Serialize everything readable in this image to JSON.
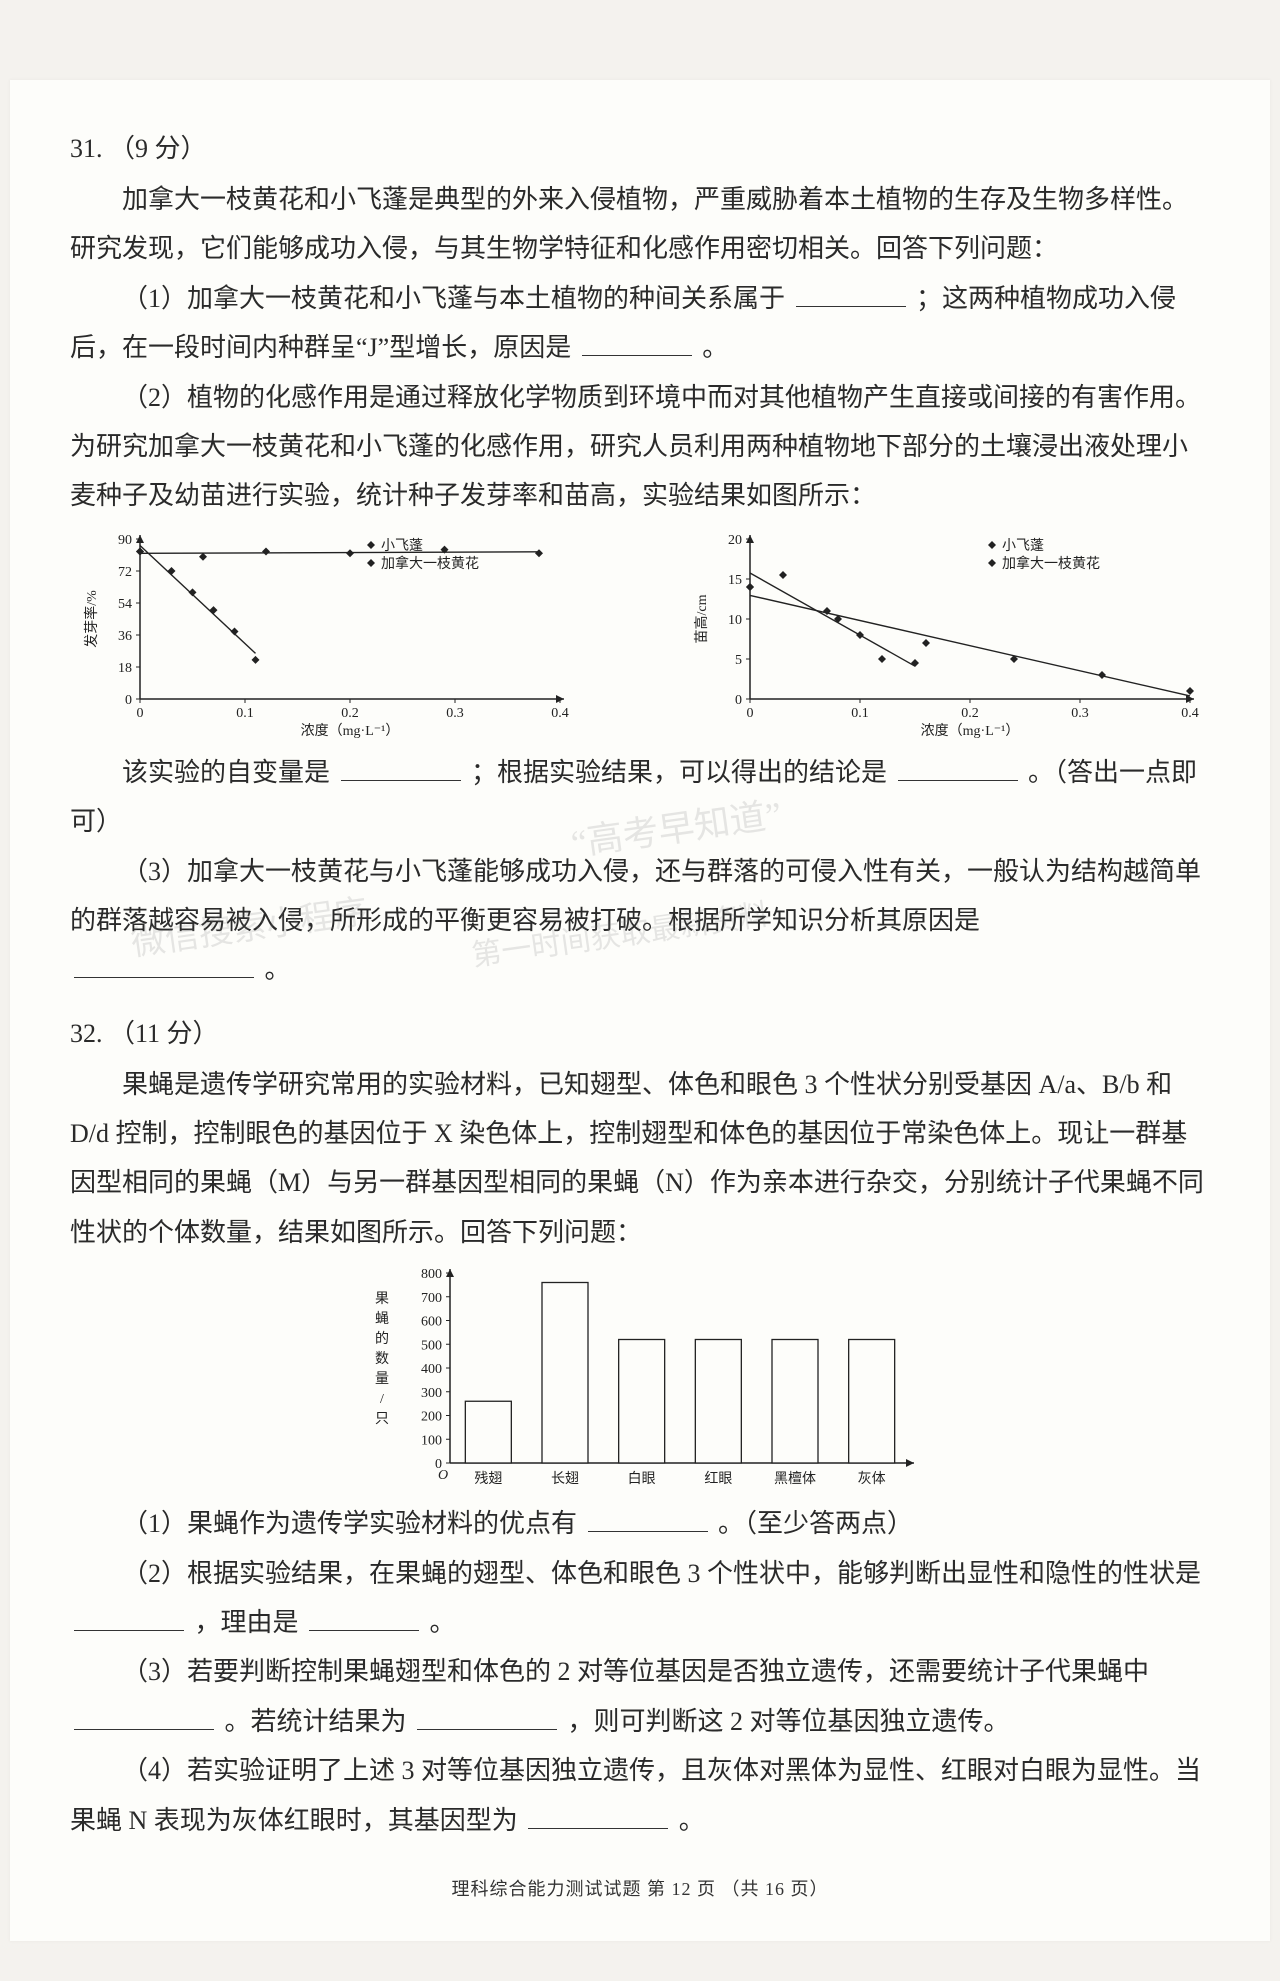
{
  "q31": {
    "header": "31. （9 分）",
    "intro": "加拿大一枝黄花和小飞蓬是典型的外来入侵植物，严重威胁着本土植物的生存及生物多样性。研究发现，它们能够成功入侵，与其生物学特征和化感作用密切相关。回答下列问题：",
    "p1a": "（1）加拿大一枝黄花和小飞蓬与本土植物的种间关系属于",
    "p1b": "；这两种植物成功入侵后，在一段时间内种群呈“J”型增长，原因是",
    "p1c": "。",
    "p2": "（2）植物的化感作用是通过释放化学物质到环境中而对其他植物产生直接或间接的有害作用。为研究加拿大一枝黄花和小飞蓬的化感作用，研究人员利用两种植物地下部分的土壤浸出液处理小麦种子及幼苗进行实验，统计种子发芽率和苗高，实验结果如图所示：",
    "p3a": "该实验的自变量是",
    "p3b": "；根据实验结果，可以得出的结论是",
    "p3c": "。（答出一点即可）",
    "p4a": "（3）加拿大一枝黄花与小飞蓬能够成功入侵，还与群落的可侵入性有关，一般认为结构越简单的群落越容易被入侵，所形成的平衡更容易被打破。根据所学知识分析其原因是",
    "p4b": "。",
    "chart1": {
      "type": "scatter-line",
      "legend": [
        "小飞蓬",
        "加拿大一枝黄花"
      ],
      "xlabel": "浓度（mg·L⁻¹）",
      "ylabel": "发芽率/%",
      "xlim": [
        0,
        0.4
      ],
      "ylim": [
        0,
        90
      ],
      "xticks": [
        0,
        0.1,
        0.2,
        0.3,
        0.4
      ],
      "yticks": [
        0,
        18,
        36,
        54,
        72,
        90
      ],
      "series1": {
        "name": "加拿大一枝黄花",
        "color": "#222222",
        "marker": "diamond",
        "points": [
          [
            0,
            83
          ],
          [
            0.06,
            80
          ],
          [
            0.12,
            83
          ],
          [
            0.2,
            82
          ],
          [
            0.29,
            84
          ],
          [
            0.38,
            82
          ]
        ]
      },
      "series2": {
        "name": "小飞蓬",
        "color": "#222222",
        "marker": "diamond",
        "points": [
          [
            0,
            83
          ],
          [
            0.03,
            72
          ],
          [
            0.05,
            60
          ],
          [
            0.07,
            50
          ],
          [
            0.09,
            38
          ],
          [
            0.11,
            22
          ]
        ]
      },
      "background_color": "#fdfdfa",
      "axis_color": "#222222",
      "font_size": 14
    },
    "chart2": {
      "type": "scatter-line",
      "legend": [
        "小飞蓬",
        "加拿大一枝黄花"
      ],
      "xlabel": "浓度（mg·L⁻¹）",
      "ylabel": "苗高/cm",
      "xlim": [
        0,
        0.4
      ],
      "ylim": [
        0,
        20
      ],
      "xticks": [
        0,
        0.1,
        0.2,
        0.3,
        0.4
      ],
      "yticks": [
        0,
        5,
        10,
        15,
        20
      ],
      "series1": {
        "name": "小飞蓬",
        "color": "#222222",
        "marker": "diamond",
        "points": [
          [
            0,
            14
          ],
          [
            0.03,
            15.5
          ],
          [
            0.07,
            11
          ],
          [
            0.1,
            8
          ],
          [
            0.12,
            5
          ],
          [
            0.15,
            4.5
          ]
        ]
      },
      "series2": {
        "name": "加拿大一枝黄花",
        "color": "#222222",
        "marker": "diamond",
        "points": [
          [
            0,
            14
          ],
          [
            0.08,
            10
          ],
          [
            0.16,
            7
          ],
          [
            0.24,
            5
          ],
          [
            0.32,
            3
          ],
          [
            0.4,
            1
          ]
        ]
      },
      "background_color": "#fdfdfa",
      "axis_color": "#222222",
      "font_size": 14
    }
  },
  "q32": {
    "header": "32. （11 分）",
    "intro": "果蝇是遗传学研究常用的实验材料，已知翅型、体色和眼色 3 个性状分别受基因 A/a、B/b 和 D/d 控制，控制眼色的基因位于 X 染色体上，控制翅型和体色的基因位于常染色体上。现让一群基因型相同的果蝇（M）与另一群基因型相同的果蝇（N）作为亲本进行杂交，分别统计子代果蝇不同性状的个体数量，结果如图所示。回答下列问题：",
    "chart": {
      "type": "bar",
      "xlabel_categories": [
        "残翅",
        "长翅",
        "白眼",
        "红眼",
        "黑檀体",
        "灰体"
      ],
      "ylabel": "果蝇的数量/只",
      "ylim": [
        0,
        800
      ],
      "yticks": [
        0,
        100,
        200,
        300,
        400,
        500,
        600,
        700,
        800
      ],
      "values": [
        260,
        760,
        520,
        520,
        520,
        520
      ],
      "bar_fill": "#fdfdfa",
      "bar_stroke": "#222222",
      "axis_color": "#222222",
      "font_size": 14,
      "bar_width": 0.6
    },
    "p1a": "（1）果蝇作为遗传学实验材料的优点有",
    "p1b": "。（至少答两点）",
    "p2a": "（2）根据实验结果，在果蝇的翅型、体色和眼色 3 个性状中，能够判断出显性和隐性的性状是",
    "p2b": "，理由是",
    "p2c": "。",
    "p3a": "（3）若要判断控制果蝇翅型和体色的 2 对等位基因是否独立遗传，还需要统计子代果蝇中",
    "p3b": "。若统计结果为",
    "p3c": "，则可判断这 2 对等位基因独立遗传。",
    "p4a": "（4）若实验证明了上述 3 对等位基因独立遗传，且灰体对黑体为显性、红眼对白眼为显性。当果蝇 N 表现为灰体红眼时，其基因型为",
    "p4b": "。"
  },
  "footer": "理科综合能力测试试题  第 12 页 （共 16 页）",
  "watermarks": {
    "w1": "“高考早知道”",
    "w2": "微信搜索小程序",
    "w3": "第一时间获取最新资料"
  }
}
